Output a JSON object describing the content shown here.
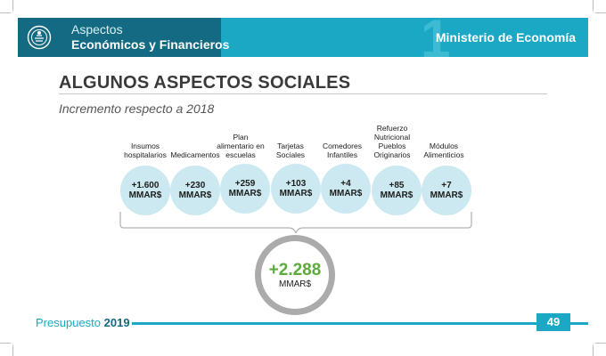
{
  "header": {
    "section_sub": "Aspectos",
    "section_main": "Económicos y Financieros",
    "section_number": "1",
    "ministry": "Ministerio de Economía"
  },
  "page": {
    "title": "ALGUNOS ASPECTOS SOCIALES",
    "subtitle": "Incremento respecto a 2018"
  },
  "items": [
    {
      "label": "Insumos hospitalarios",
      "value": "+1.600",
      "unit": "MMAR$"
    },
    {
      "label": "Medicamentos",
      "value": "+230",
      "unit": "MMAR$"
    },
    {
      "label": "Plan alimentario en escuelas",
      "value": "+259",
      "unit": "MMAR$"
    },
    {
      "label": "Tarjetas Sociales",
      "value": "+103",
      "unit": "MMAR$"
    },
    {
      "label": "Comedores Infantiles",
      "value": "+4",
      "unit": "MMAR$"
    },
    {
      "label": "Refuerzo Nutricional Pueblos Originarios",
      "value": "+85",
      "unit": "MMAR$"
    },
    {
      "label": "Módulos Alimenticios",
      "value": "+7",
      "unit": "MMAR$"
    }
  ],
  "total": {
    "value": "+2.288",
    "unit": "MMAR$"
  },
  "footer": {
    "label": "Presupuesto",
    "year": "2019",
    "page_number": "49"
  },
  "colors": {
    "teal": "#1ba8c4",
    "dark_teal": "#136a82",
    "bubble": "#cce9f1",
    "green": "#5dab3a"
  }
}
